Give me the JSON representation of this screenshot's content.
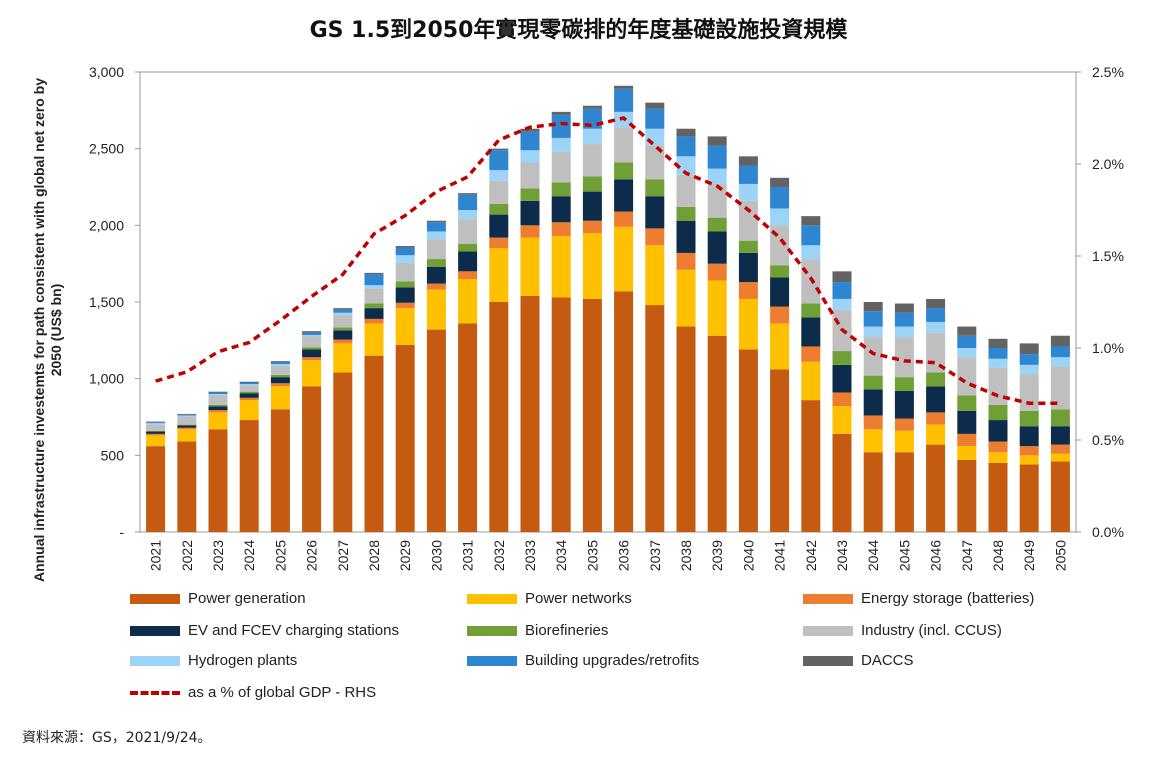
{
  "page": {
    "title": "GS 1.5到2050年實現零碳排的年度基礎設施投資規模",
    "source": "資料來源：GS，2021/9/24。"
  },
  "chart_data": {
    "type": "bar",
    "stacked": true,
    "categories": [
      "2021",
      "2022",
      "2023",
      "2024",
      "2025",
      "2026",
      "2027",
      "2028",
      "2029",
      "2030",
      "2031",
      "2032",
      "2033",
      "2034",
      "2035",
      "2036",
      "2037",
      "2038",
      "2039",
      "2040",
      "2041",
      "2042",
      "2043",
      "2044",
      "2045",
      "2046",
      "2047",
      "2048",
      "2049",
      "2050"
    ],
    "ylabel": "Annual infrastructure investemts for path consistent with global net zero by 2050 (US$ bn)",
    "ylim": [
      0,
      3000
    ],
    "y_ticks": [
      "-",
      "500",
      "1,000",
      "1,500",
      "2,000",
      "2,500",
      "3,000"
    ],
    "y2_ticks": [
      "0.0%",
      "0.5%",
      "1.0%",
      "1.5%",
      "2.0%",
      "2.5%"
    ],
    "y2lim": [
      0,
      2.5
    ],
    "grid": false,
    "legend_position": "bottom",
    "series": [
      {
        "name": "Power generation",
        "color": "#c55a11",
        "values": [
          560,
          590,
          670,
          730,
          800,
          950,
          1040,
          1150,
          1220,
          1320,
          1360,
          1500,
          1540,
          1530,
          1520,
          1570,
          1480,
          1340,
          1280,
          1190,
          1060,
          860,
          640,
          520,
          520,
          570,
          470,
          450,
          440,
          460
        ]
      },
      {
        "name": "Power networks",
        "color": "#ffc000",
        "values": [
          70,
          80,
          110,
          130,
          150,
          170,
          190,
          210,
          240,
          260,
          290,
          350,
          380,
          400,
          430,
          420,
          390,
          370,
          360,
          330,
          300,
          250,
          180,
          150,
          140,
          130,
          90,
          70,
          60,
          50
        ]
      },
      {
        "name": "Energy storage (batteries)",
        "color": "#ed7d31",
        "values": [
          10,
          10,
          15,
          15,
          20,
          20,
          25,
          30,
          35,
          40,
          50,
          70,
          80,
          90,
          80,
          100,
          110,
          110,
          110,
          110,
          110,
          100,
          90,
          90,
          80,
          80,
          80,
          70,
          60,
          60
        ]
      },
      {
        "name": "EV and FCEV charging stations",
        "color": "#0d2b4a",
        "values": [
          15,
          15,
          25,
          30,
          40,
          50,
          60,
          70,
          100,
          110,
          130,
          150,
          160,
          170,
          190,
          210,
          210,
          210,
          210,
          190,
          190,
          190,
          180,
          170,
          180,
          170,
          150,
          140,
          130,
          120
        ]
      },
      {
        "name": "Biorefineries",
        "color": "#70a035",
        "values": [
          5,
          5,
          10,
          10,
          15,
          15,
          20,
          30,
          40,
          50,
          50,
          70,
          80,
          90,
          100,
          110,
          110,
          90,
          90,
          80,
          80,
          90,
          90,
          90,
          90,
          90,
          100,
          100,
          100,
          110
        ]
      },
      {
        "name": "Industry (incl. CCUS)",
        "color": "#bfbfbf",
        "values": [
          40,
          50,
          60,
          40,
          60,
          70,
          80,
          100,
          120,
          130,
          160,
          150,
          170,
          200,
          210,
          230,
          220,
          210,
          220,
          260,
          260,
          290,
          270,
          250,
          260,
          260,
          250,
          240,
          240,
          280
        ]
      },
      {
        "name": "Hydrogen plants",
        "color": "#9dd3f7",
        "values": [
          10,
          10,
          10,
          10,
          10,
          10,
          15,
          20,
          50,
          50,
          60,
          70,
          80,
          90,
          100,
          100,
          110,
          120,
          100,
          110,
          110,
          90,
          70,
          70,
          70,
          70,
          60,
          60,
          60,
          60
        ]
      },
      {
        "name": "Building upgrades/retrofits",
        "color": "#2e86d1",
        "values": [
          5,
          5,
          10,
          10,
          15,
          15,
          20,
          70,
          50,
          60,
          100,
          130,
          120,
          150,
          130,
          150,
          130,
          130,
          150,
          120,
          140,
          130,
          110,
          100,
          90,
          90,
          80,
          70,
          70,
          70
        ]
      },
      {
        "name": "DACCS",
        "color": "#636363",
        "values": [
          5,
          5,
          5,
          5,
          5,
          10,
          10,
          10,
          10,
          10,
          10,
          10,
          20,
          20,
          20,
          20,
          40,
          50,
          60,
          60,
          60,
          60,
          70,
          60,
          60,
          60,
          60,
          60,
          70,
          70
        ]
      }
    ],
    "line": {
      "name": "as a % of global GDP - RHS",
      "color": "#c00000",
      "axis": "right",
      "values": [
        0.82,
        0.87,
        0.98,
        1.03,
        1.15,
        1.28,
        1.4,
        1.62,
        1.72,
        1.85,
        1.93,
        2.13,
        2.2,
        2.22,
        2.21,
        2.25,
        2.1,
        1.95,
        1.88,
        1.75,
        1.6,
        1.38,
        1.1,
        0.97,
        0.93,
        0.92,
        0.81,
        0.74,
        0.7,
        0.7
      ]
    }
  }
}
